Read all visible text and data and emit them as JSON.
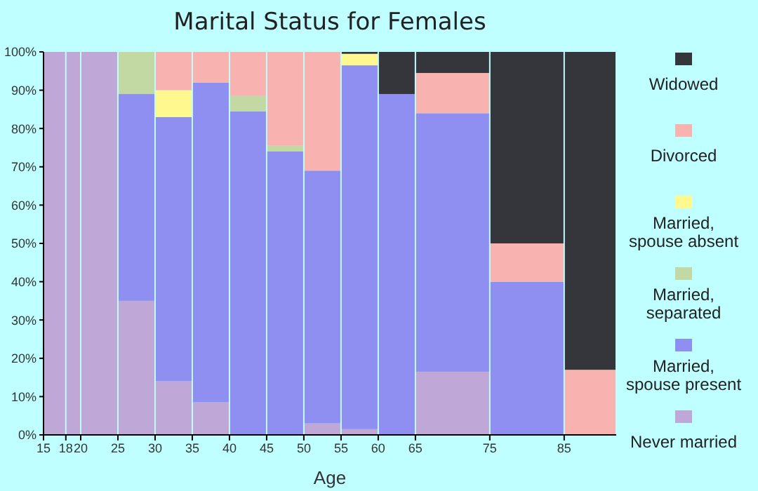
{
  "chart_data": {
    "type": "bar",
    "title": "Marital Status for Females",
    "xlabel": "Age",
    "stacked": true,
    "x": [
      16.5,
      19,
      22.5,
      27.5,
      32.5,
      37.5,
      42.5,
      47.5,
      52.5,
      57.5,
      62.5,
      70,
      80,
      88.5
    ],
    "xlim": [
      15,
      92
    ],
    "xticks": [
      15,
      18,
      20,
      25,
      30,
      35,
      40,
      45,
      50,
      55,
      60,
      65,
      75,
      85
    ],
    "ylim": [
      0,
      100
    ],
    "yticks": [
      {
        "value": 0,
        "label": "0%"
      },
      {
        "value": 10,
        "label": "10%"
      },
      {
        "value": 20,
        "label": "20%"
      },
      {
        "value": 30,
        "label": "30%"
      },
      {
        "value": 40,
        "label": "40%"
      },
      {
        "value": 50,
        "label": "50%"
      },
      {
        "value": 60,
        "label": "60%"
      },
      {
        "value": 70,
        "label": "70%"
      },
      {
        "value": 80,
        "label": "80%"
      },
      {
        "value": 90,
        "label": "90%"
      },
      {
        "value": 100,
        "label": "100%"
      }
    ],
    "grid": false,
    "legend": "right",
    "series": [
      {
        "name": "Never married",
        "color": "#bfa7d8",
        "values": [
          100,
          100,
          100,
          35,
          14,
          8.5,
          0,
          0,
          3,
          1.5,
          0,
          16.5,
          0,
          0
        ]
      },
      {
        "name": "Married, spouse present",
        "color": "#8e8ff0",
        "values": [
          0,
          0,
          0,
          54,
          69,
          83.5,
          84.5,
          74,
          66,
          95,
          89,
          67.5,
          40,
          0
        ]
      },
      {
        "name": "Married, separated",
        "color": "#c2d9a3",
        "values": [
          0,
          0,
          0,
          11,
          0,
          0,
          4,
          1.5,
          0,
          0,
          0,
          0,
          0,
          0
        ]
      },
      {
        "name": "Married, spouse absent",
        "color": "#fef88e",
        "values": [
          0,
          0,
          0,
          0,
          7,
          0,
          0,
          0,
          0,
          3,
          0,
          0,
          0,
          0
        ]
      },
      {
        "name": "Divorced",
        "color": "#f8b2b0",
        "values": [
          0,
          0,
          0,
          0,
          10,
          8,
          11.5,
          24.5,
          31,
          0,
          0,
          10.5,
          10,
          17
        ]
      },
      {
        "name": "Widowed",
        "color": "#35363b",
        "values": [
          0,
          0,
          0,
          0,
          0,
          0,
          0,
          0,
          0,
          0.5,
          11,
          5.5,
          50,
          83
        ]
      }
    ]
  }
}
